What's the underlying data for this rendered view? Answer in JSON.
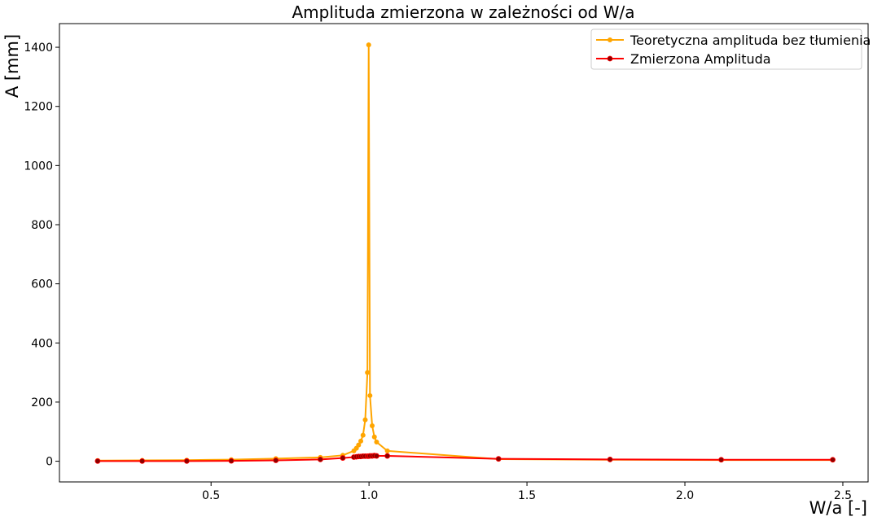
{
  "chart_data": {
    "type": "line",
    "title": "Amplituda zmierzona w zależności od W/a",
    "xlabel": "W/a [-]",
    "ylabel": "A [mm]",
    "xlim": [
      0.02,
      2.58
    ],
    "ylim": [
      -70,
      1480
    ],
    "xticks": [
      0.5,
      1.0,
      1.5,
      2.0,
      2.5
    ],
    "xtick_labels": [
      "0.5",
      "1.0",
      "1.5",
      "2.0",
      "2.5"
    ],
    "yticks": [
      0,
      200,
      400,
      600,
      800,
      1000,
      1200,
      1400
    ],
    "ytick_labels": [
      "0",
      "200",
      "400",
      "600",
      "800",
      "1000",
      "1200",
      "1400"
    ],
    "grid": false,
    "legend_position": "top-right",
    "series": [
      {
        "name": "Teoretyczna amplituda bez tłumienia",
        "color": "#FFA500",
        "marker_color": "#FFA500",
        "x": [
          0.141,
          0.282,
          0.423,
          0.564,
          0.705,
          0.846,
          0.917,
          0.952,
          0.96,
          0.967,
          0.974,
          0.981,
          0.988,
          0.995,
          0.999,
          1.003,
          1.01,
          1.017,
          1.024,
          1.058,
          1.41,
          1.763,
          2.115,
          2.468
        ],
        "y": [
          2.3,
          2.8,
          3.7,
          5.5,
          8.7,
          13,
          20,
          35,
          44,
          55,
          68,
          88,
          140,
          300,
          1408,
          222,
          120,
          82,
          65,
          35,
          7,
          5,
          4,
          4
        ]
      },
      {
        "name": "Zmierzona Amplituda",
        "color": "#FF0000",
        "marker_color": "#8B0000",
        "x": [
          0.141,
          0.282,
          0.423,
          0.564,
          0.705,
          0.846,
          0.917,
          0.952,
          0.96,
          0.967,
          0.974,
          0.981,
          0.988,
          0.995,
          0.999,
          1.003,
          1.01,
          1.017,
          1.024,
          1.058,
          1.41,
          1.763,
          2.115,
          2.468
        ],
        "y": [
          0.5,
          0.5,
          0.7,
          1.2,
          3,
          6,
          11,
          14,
          15,
          16,
          16,
          17,
          17,
          17,
          17,
          18,
          18,
          19,
          18,
          18,
          8,
          6,
          5,
          5
        ]
      }
    ]
  }
}
